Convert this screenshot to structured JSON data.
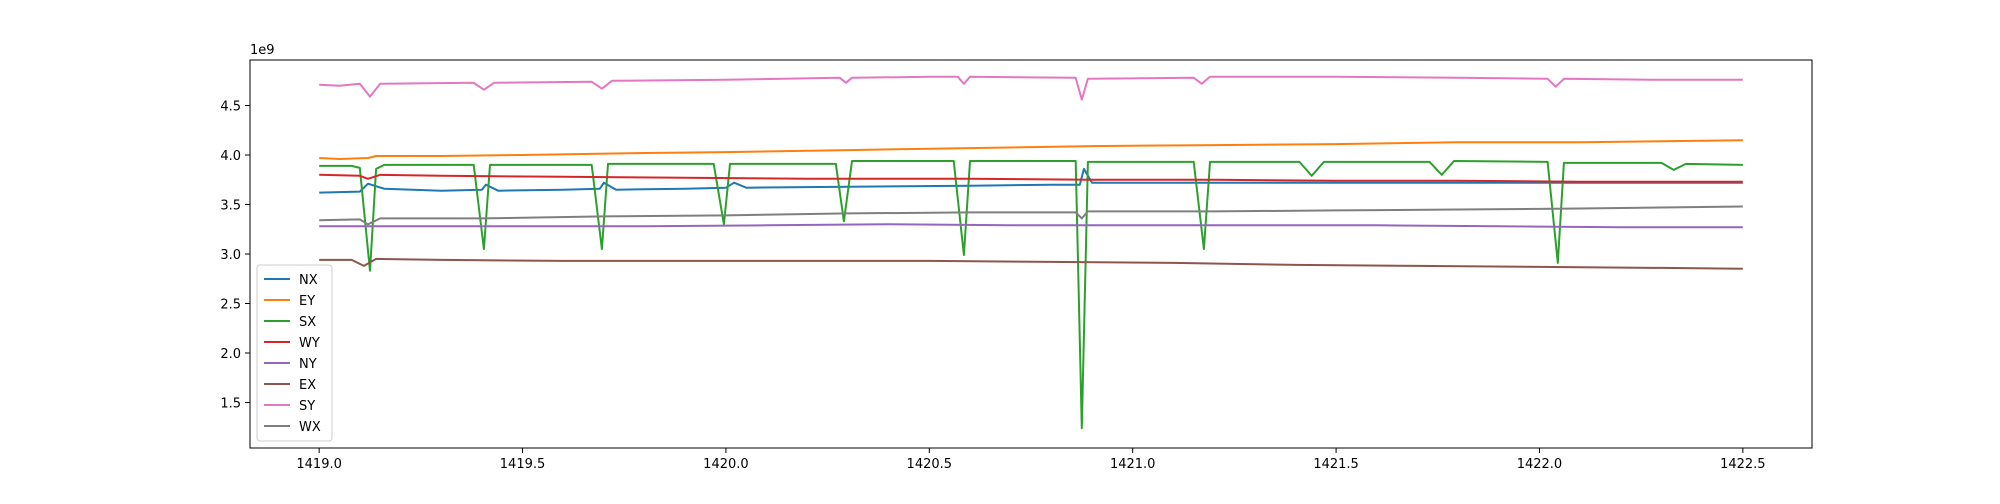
{
  "chart_data": {
    "type": "line",
    "title": "",
    "xlabel": "",
    "ylabel": "",
    "y_offset_label": "1e9",
    "xlim": [
      1418.83,
      1422.67
    ],
    "ylim": [
      1.04,
      4.96
    ],
    "grid": false,
    "legend_placement": "lower-left",
    "x_ticks": [
      1419.0,
      1419.5,
      1420.0,
      1420.5,
      1421.0,
      1421.5,
      1422.0,
      1422.5
    ],
    "x_tick_labels": [
      "1419.0",
      "1419.5",
      "1420.0",
      "1420.5",
      "1421.0",
      "1421.5",
      "1422.0",
      "1422.5"
    ],
    "y_ticks": [
      1.5,
      2.0,
      2.5,
      3.0,
      3.5,
      4.0,
      4.5
    ],
    "y_tick_labels": [
      "1.5",
      "2.0",
      "2.5",
      "3.0",
      "3.5",
      "4.0",
      "4.5"
    ],
    "x_range": [
      1419.0,
      1422.5
    ],
    "series": [
      {
        "name": "NX",
        "color": "#1f77b4",
        "points": [
          [
            1419.0,
            3.62
          ],
          [
            1419.1,
            3.63
          ],
          [
            1419.12,
            3.71
          ],
          [
            1419.16,
            3.66
          ],
          [
            1419.3,
            3.64
          ],
          [
            1419.4,
            3.65
          ],
          [
            1419.41,
            3.7
          ],
          [
            1419.44,
            3.64
          ],
          [
            1419.6,
            3.65
          ],
          [
            1419.69,
            3.66
          ],
          [
            1419.7,
            3.72
          ],
          [
            1419.73,
            3.65
          ],
          [
            1419.9,
            3.66
          ],
          [
            1420.0,
            3.67
          ],
          [
            1420.02,
            3.72
          ],
          [
            1420.05,
            3.67
          ],
          [
            1420.3,
            3.68
          ],
          [
            1420.6,
            3.69
          ],
          [
            1420.8,
            3.7
          ],
          [
            1420.87,
            3.7
          ],
          [
            1420.88,
            3.86
          ],
          [
            1420.9,
            3.72
          ],
          [
            1421.2,
            3.72
          ],
          [
            1421.6,
            3.72
          ],
          [
            1422.0,
            3.72
          ],
          [
            1422.5,
            3.72
          ]
        ]
      },
      {
        "name": "EY",
        "color": "#ff7f0e",
        "points": [
          [
            1419.0,
            3.97
          ],
          [
            1419.05,
            3.96
          ],
          [
            1419.12,
            3.97
          ],
          [
            1419.14,
            3.99
          ],
          [
            1419.3,
            3.99
          ],
          [
            1419.5,
            4.0
          ],
          [
            1419.8,
            4.02
          ],
          [
            1420.0,
            4.03
          ],
          [
            1420.3,
            4.05
          ],
          [
            1420.6,
            4.07
          ],
          [
            1420.9,
            4.09
          ],
          [
            1421.2,
            4.1
          ],
          [
            1421.5,
            4.11
          ],
          [
            1421.8,
            4.13
          ],
          [
            1422.1,
            4.13
          ],
          [
            1422.3,
            4.14
          ],
          [
            1422.5,
            4.15
          ]
        ]
      },
      {
        "name": "SX",
        "color": "#2ca02c",
        "points": [
          [
            1419.0,
            3.89
          ],
          [
            1419.08,
            3.89
          ],
          [
            1419.1,
            3.87
          ],
          [
            1419.125,
            2.83
          ],
          [
            1419.14,
            3.86
          ],
          [
            1419.16,
            3.9
          ],
          [
            1419.38,
            3.9
          ],
          [
            1419.405,
            3.05
          ],
          [
            1419.42,
            3.9
          ],
          [
            1419.67,
            3.9
          ],
          [
            1419.695,
            3.05
          ],
          [
            1419.71,
            3.91
          ],
          [
            1419.97,
            3.91
          ],
          [
            1419.995,
            3.3
          ],
          [
            1420.01,
            3.91
          ],
          [
            1420.27,
            3.91
          ],
          [
            1420.29,
            3.33
          ],
          [
            1420.31,
            3.94
          ],
          [
            1420.56,
            3.94
          ],
          [
            1420.585,
            2.99
          ],
          [
            1420.6,
            3.94
          ],
          [
            1420.86,
            3.94
          ],
          [
            1420.875,
            1.24
          ],
          [
            1420.89,
            3.93
          ],
          [
            1421.15,
            3.93
          ],
          [
            1421.175,
            3.05
          ],
          [
            1421.19,
            3.93
          ],
          [
            1421.41,
            3.93
          ],
          [
            1421.44,
            3.79
          ],
          [
            1421.47,
            3.93
          ],
          [
            1421.73,
            3.93
          ],
          [
            1421.76,
            3.8
          ],
          [
            1421.79,
            3.94
          ],
          [
            1422.02,
            3.93
          ],
          [
            1422.045,
            2.91
          ],
          [
            1422.06,
            3.92
          ],
          [
            1422.3,
            3.92
          ],
          [
            1422.33,
            3.85
          ],
          [
            1422.36,
            3.91
          ],
          [
            1422.5,
            3.9
          ]
        ]
      },
      {
        "name": "WY",
        "color": "#d62728",
        "points": [
          [
            1419.0,
            3.8
          ],
          [
            1419.1,
            3.79
          ],
          [
            1419.12,
            3.76
          ],
          [
            1419.15,
            3.8
          ],
          [
            1419.3,
            3.79
          ],
          [
            1419.6,
            3.78
          ],
          [
            1419.9,
            3.77
          ],
          [
            1420.2,
            3.76
          ],
          [
            1420.6,
            3.76
          ],
          [
            1420.9,
            3.75
          ],
          [
            1421.2,
            3.75
          ],
          [
            1421.5,
            3.74
          ],
          [
            1421.8,
            3.74
          ],
          [
            1422.1,
            3.73
          ],
          [
            1422.5,
            3.73
          ]
        ]
      },
      {
        "name": "NY",
        "color": "#9467bd",
        "points": [
          [
            1419.0,
            3.28
          ],
          [
            1419.2,
            3.28
          ],
          [
            1419.5,
            3.28
          ],
          [
            1419.8,
            3.28
          ],
          [
            1420.1,
            3.29
          ],
          [
            1420.4,
            3.3
          ],
          [
            1420.7,
            3.29
          ],
          [
            1421.0,
            3.29
          ],
          [
            1421.3,
            3.29
          ],
          [
            1421.6,
            3.29
          ],
          [
            1421.9,
            3.28
          ],
          [
            1422.2,
            3.27
          ],
          [
            1422.5,
            3.27
          ]
        ]
      },
      {
        "name": "EX",
        "color": "#8c564b",
        "points": [
          [
            1419.0,
            2.94
          ],
          [
            1419.08,
            2.94
          ],
          [
            1419.11,
            2.88
          ],
          [
            1419.14,
            2.95
          ],
          [
            1419.3,
            2.94
          ],
          [
            1419.6,
            2.93
          ],
          [
            1419.9,
            2.93
          ],
          [
            1420.2,
            2.93
          ],
          [
            1420.5,
            2.93
          ],
          [
            1420.8,
            2.92
          ],
          [
            1421.1,
            2.91
          ],
          [
            1421.4,
            2.89
          ],
          [
            1421.7,
            2.88
          ],
          [
            1422.0,
            2.87
          ],
          [
            1422.3,
            2.86
          ],
          [
            1422.5,
            2.85
          ]
        ]
      },
      {
        "name": "SY",
        "color": "#e377c2",
        "points": [
          [
            1419.0,
            4.71
          ],
          [
            1419.05,
            4.7
          ],
          [
            1419.1,
            4.72
          ],
          [
            1419.125,
            4.59
          ],
          [
            1419.15,
            4.72
          ],
          [
            1419.38,
            4.73
          ],
          [
            1419.405,
            4.66
          ],
          [
            1419.43,
            4.73
          ],
          [
            1419.67,
            4.74
          ],
          [
            1419.695,
            4.67
          ],
          [
            1419.72,
            4.75
          ],
          [
            1420.0,
            4.76
          ],
          [
            1420.28,
            4.78
          ],
          [
            1420.295,
            4.73
          ],
          [
            1420.31,
            4.78
          ],
          [
            1420.5,
            4.79
          ],
          [
            1420.57,
            4.79
          ],
          [
            1420.585,
            4.72
          ],
          [
            1420.6,
            4.79
          ],
          [
            1420.86,
            4.78
          ],
          [
            1420.875,
            4.56
          ],
          [
            1420.89,
            4.77
          ],
          [
            1421.15,
            4.78
          ],
          [
            1421.17,
            4.72
          ],
          [
            1421.19,
            4.79
          ],
          [
            1421.5,
            4.79
          ],
          [
            1421.8,
            4.78
          ],
          [
            1422.02,
            4.77
          ],
          [
            1422.04,
            4.69
          ],
          [
            1422.06,
            4.77
          ],
          [
            1422.3,
            4.76
          ],
          [
            1422.5,
            4.76
          ]
        ]
      },
      {
        "name": "WX",
        "color": "#7f7f7f",
        "points": [
          [
            1419.0,
            3.34
          ],
          [
            1419.1,
            3.35
          ],
          [
            1419.12,
            3.3
          ],
          [
            1419.15,
            3.36
          ],
          [
            1419.4,
            3.36
          ],
          [
            1419.7,
            3.38
          ],
          [
            1420.0,
            3.39
          ],
          [
            1420.3,
            3.41
          ],
          [
            1420.6,
            3.42
          ],
          [
            1420.86,
            3.42
          ],
          [
            1420.875,
            3.36
          ],
          [
            1420.89,
            3.43
          ],
          [
            1421.2,
            3.43
          ],
          [
            1421.5,
            3.44
          ],
          [
            1421.8,
            3.45
          ],
          [
            1422.1,
            3.46
          ],
          [
            1422.5,
            3.48
          ]
        ]
      }
    ]
  }
}
